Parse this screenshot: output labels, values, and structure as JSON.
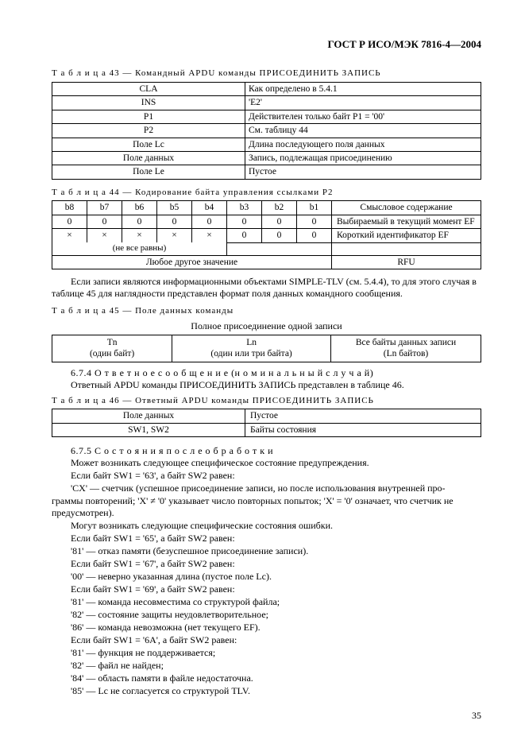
{
  "header": "ГОСТ Р ИСО/МЭК 7816-4—2004",
  "cap43": "Т а б л и ц а  43 — Командный APDU команды ПРИСОЕДИНИТЬ ЗАПИСЬ",
  "t43": {
    "rows": [
      [
        "CLA",
        "Как определено в 5.4.1"
      ],
      [
        "INS",
        "'E2'"
      ],
      [
        "P1",
        "Действителен только байт P1 = '00'"
      ],
      [
        "P2",
        "См. таблицу 44"
      ],
      [
        "Поле Lс",
        "Длина последующего поля данных"
      ],
      [
        "Поле данных",
        "Запись, подлежащая присоединению"
      ],
      [
        "Поле Lе",
        "Пустое"
      ]
    ]
  },
  "cap44": "Т а б л и ц а  44 — Кодирование байта управления ссылками P2",
  "t44": {
    "header": [
      "b8",
      "b7",
      "b6",
      "b5",
      "b4",
      "b3",
      "b2",
      "b1",
      "Смысловое содержание"
    ],
    "r1": [
      "0",
      "0",
      "0",
      "0",
      "0",
      "0",
      "0",
      "0",
      "Выбираемый в текущий момент EF"
    ],
    "r2": [
      "×",
      "×",
      "×",
      "×",
      "×",
      "0",
      "0",
      "0",
      "Короткий идентификатор EF"
    ],
    "note": "(не все равны)",
    "r3_left": "Любое другое значение",
    "r3_right": "RFU"
  },
  "para1": "Если записи являются информационными объектами SIMPLE-TLV (см. 5.4.4), то для этого случая в таблице 45 для наглядности представлен формат поля данных командного сообщения.",
  "cap45": "Т а б л и ц а  45 — Поле данных команды",
  "t45_title": "Полное присоединение одной записи",
  "t45": {
    "c1a": "Tn",
    "c1b": "(один байт)",
    "c2a": "Ln",
    "c2b": "(один или три байта)",
    "c3a": "Все байты данных записи",
    "c3b": "(Ln байтов)"
  },
  "sec674_a": "6.7.4 О т в е т н о е   с о о б щ е н и е   (н о м и н а л ь н ы й   с л у ч а й)",
  "sec674_b": "Ответный APDU команды ПРИСОЕДИНИТЬ ЗАПИСЬ представлен в таблице 46.",
  "cap46": "Т а б л и ц а  46 — Ответный APDU команды ПРИСОЕДИНИТЬ ЗАПИСЬ",
  "t46": {
    "r1": [
      "Поле данных",
      "Пустое"
    ],
    "r2": [
      "SW1, SW2",
      "Байты состояния"
    ]
  },
  "sec675": "6.7.5 С о с т о я н и я   п о с л е   о б р а б о т к и",
  "lines": [
    "Может возникать следующее специфическое состояние предупреждения.",
    "Если байт SW1 = '63', а байт SW2 равен:",
    "'CX' — счетчик (успешное присоединение записи, но после использования внутренней про-",
    "граммы повторений; 'X' ≠ '0' указывает число повторных попыток; 'X' = '0' означает, что счетчик не предусмотрен).",
    "Могут возникать следующие специфические состояния ошибки.",
    "Если байт SW1 = '65', а байт SW2 равен:",
    "'81' — отказ памяти (безуспешное присоединение записи).",
    "Если байт SW1 = '67', а байт SW2 равен:",
    "'00' — неверно указанная длина (пустое поле Lс).",
    "Если байт SW1 = '69', а байт SW2 равен:",
    "'81' — команда несовместима со структурой файла;",
    "'82' — состояние защиты неудовлетворительное;",
    "'86' — команда невозможна (нет текущего EF).",
    "Если байт SW1 = '6A', а байт SW2 равен:",
    "'81' — функция не поддерживается;",
    "'82' — файл не найден;",
    "'84' — область памяти в файле недостаточна.",
    "'85' — Lс не согласуется со структурой TLV."
  ],
  "pagenum": "35"
}
